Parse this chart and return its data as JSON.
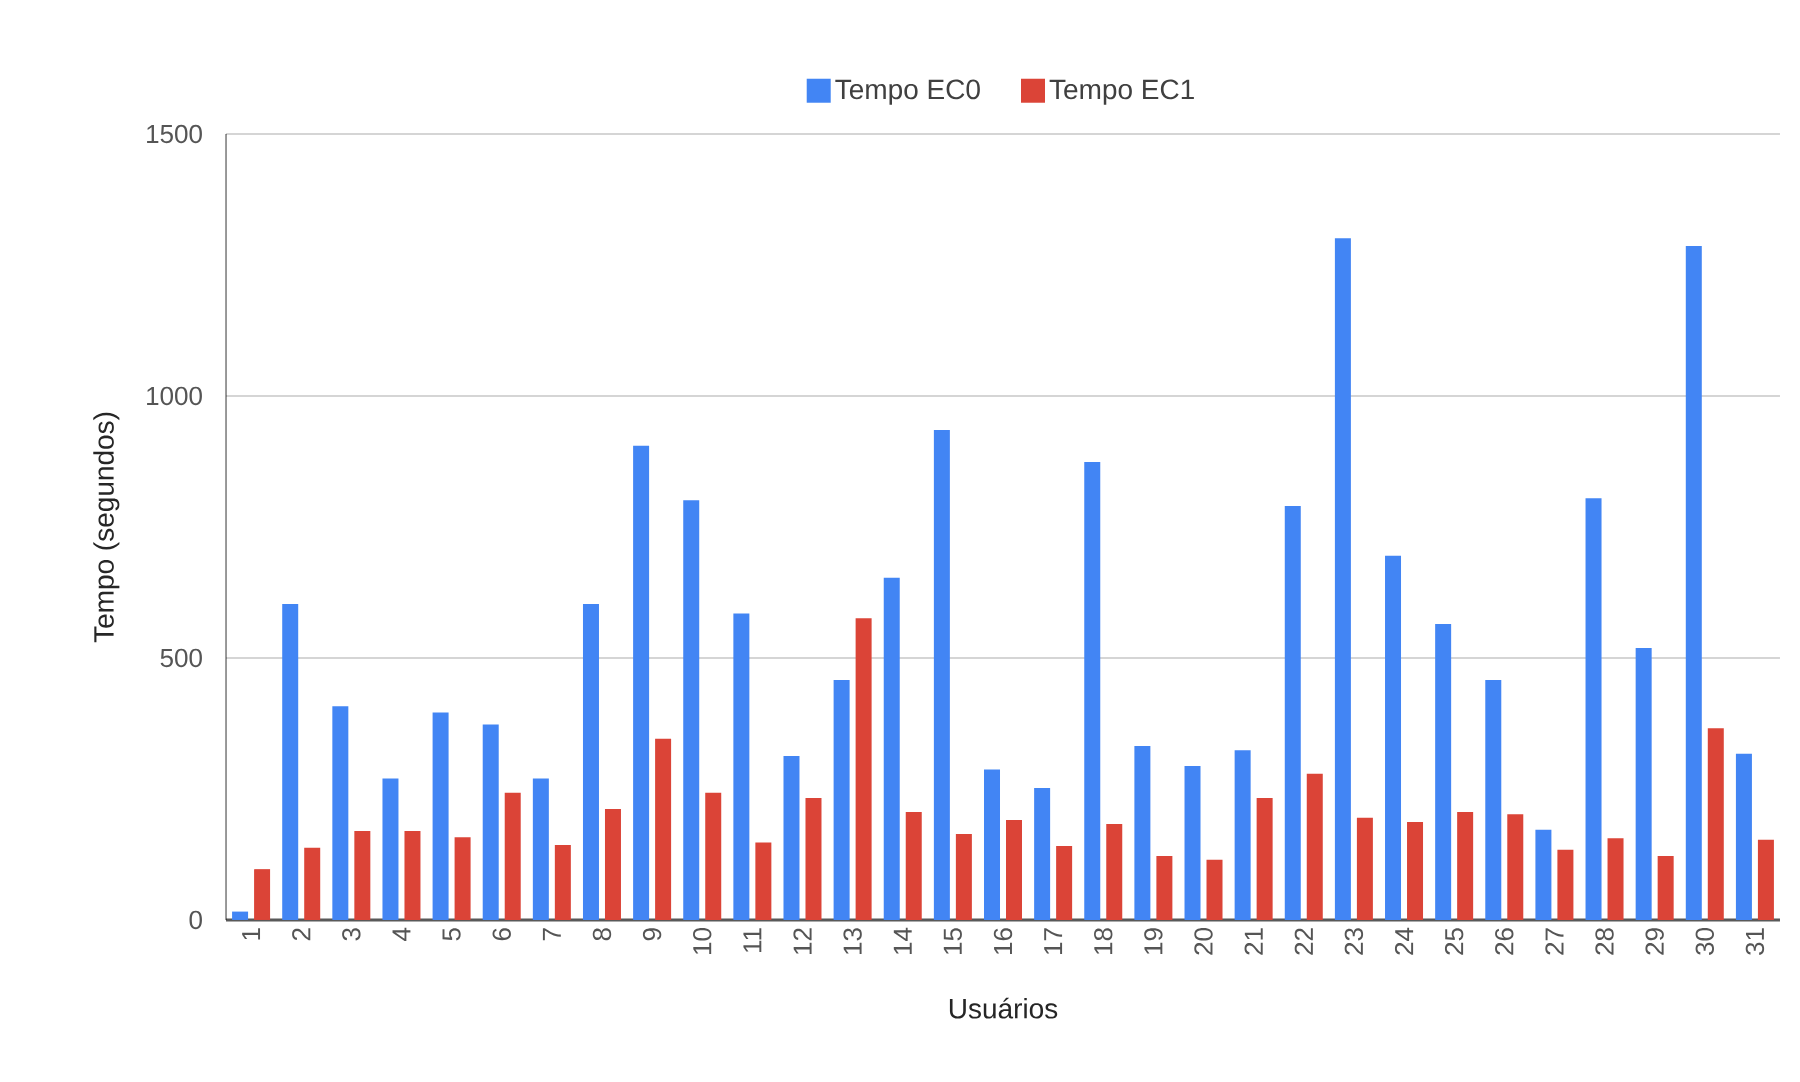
{
  "chart_data": {
    "type": "bar",
    "xlabel": "Usuários",
    "ylabel": "Tempo (segundos)",
    "categories": [
      "1",
      "2",
      "3",
      "4",
      "5",
      "6",
      "7",
      "8",
      "9",
      "10",
      "11",
      "12",
      "13",
      "14",
      "15",
      "16",
      "17",
      "18",
      "19",
      "20",
      "21",
      "22",
      "23",
      "24",
      "25",
      "26",
      "27",
      "28",
      "29",
      "30",
      "31"
    ],
    "series": [
      {
        "name": "Tempo EC0",
        "color": "#4285f4",
        "values": [
          16,
          603,
          408,
          270,
          396,
          373,
          270,
          603,
          905,
          801,
          585,
          313,
          458,
          653,
          935,
          287,
          252,
          874,
          332,
          294,
          324,
          790,
          1301,
          695,
          565,
          458,
          172,
          805,
          519,
          1286,
          317
        ]
      },
      {
        "name": "Tempo EC1",
        "color": "#db4437",
        "values": [
          97,
          138,
          170,
          170,
          158,
          243,
          143,
          212,
          346,
          243,
          148,
          233,
          576,
          206,
          164,
          191,
          141,
          183,
          122,
          115,
          233,
          279,
          195,
          187,
          206,
          202,
          134,
          156,
          122,
          366,
          153
        ]
      }
    ],
    "ylim": [
      0,
      1500
    ],
    "yticks": [
      0,
      500,
      1000,
      1500
    ],
    "grid": "y",
    "legend": "top"
  }
}
